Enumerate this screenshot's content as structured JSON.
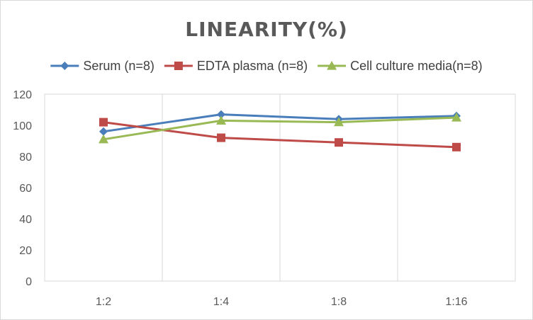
{
  "chart_data": {
    "type": "line",
    "title": "LINEARITY(%)",
    "xlabel": "",
    "ylabel": "",
    "categories": [
      "1:2",
      "1:4",
      "1:8",
      "1:16"
    ],
    "ylim": [
      0,
      120
    ],
    "yticks": [
      0,
      20,
      40,
      60,
      80,
      100,
      120
    ],
    "grid": "vertical",
    "legend_position": "top",
    "series": [
      {
        "name": "Serum (n=8)",
        "values": [
          96,
          107,
          104,
          106
        ],
        "color": "#4a7ebb",
        "marker": "diamond"
      },
      {
        "name": "EDTA plasma (n=8)",
        "values": [
          102,
          92,
          89,
          86
        ],
        "color": "#be4b48",
        "marker": "square"
      },
      {
        "name": "Cell culture media(n=8)",
        "values": [
          91,
          103,
          102,
          105
        ],
        "color": "#98b954",
        "marker": "triangle"
      }
    ]
  }
}
